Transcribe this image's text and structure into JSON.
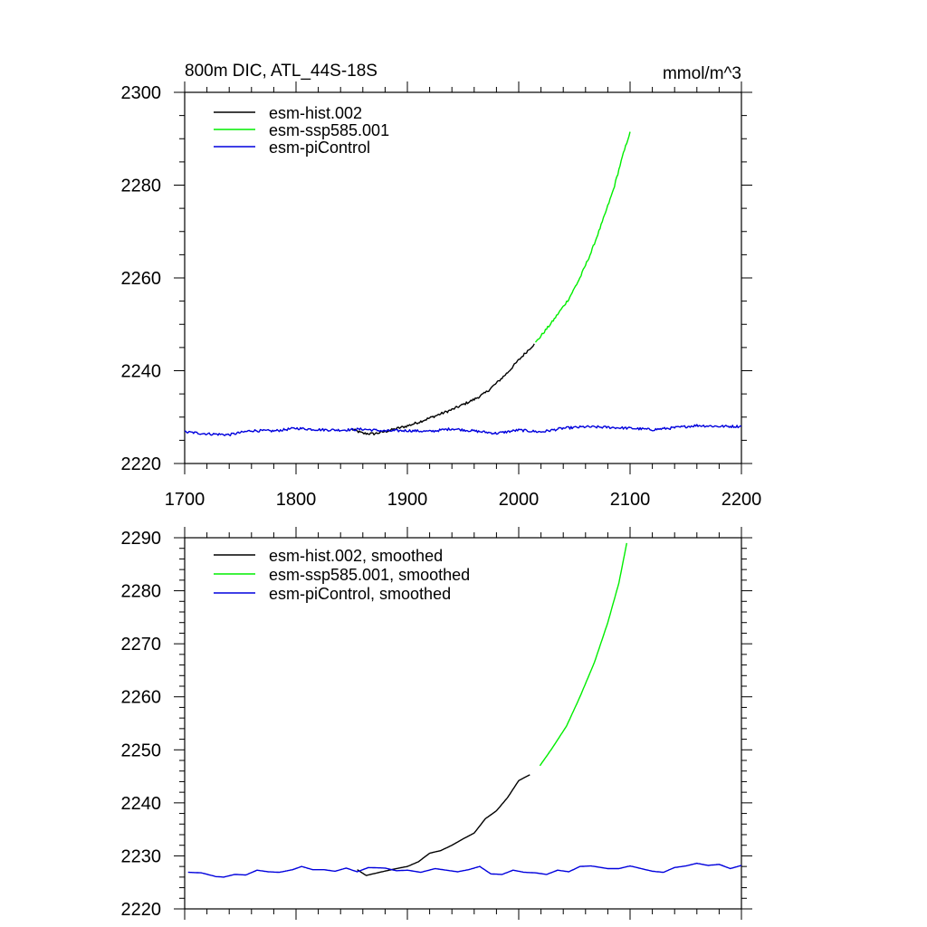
{
  "chart_data": [
    {
      "type": "line",
      "title": "800m DIC, ATL_44S-18S",
      "units": "mmol/m^3",
      "xlim": [
        1700,
        2200
      ],
      "ylim": [
        2220,
        2300
      ],
      "x_ticks": [
        "1700",
        "1800",
        "1900",
        "2000",
        "2100",
        "2200"
      ],
      "y_ticks": [
        "2220",
        "2240",
        "2260",
        "2280",
        "2300"
      ],
      "legend": [
        "esm-hist.002",
        "esm-ssp585.001",
        "esm-piControl"
      ],
      "series": [
        {
          "name": "esm-hist.002",
          "color": "#000000",
          "noisy": true,
          "points": [
            [
              1850,
              2227.4
            ],
            [
              1860,
              2226.5
            ],
            [
              1870,
              2226.4
            ],
            [
              1880,
              2226.9
            ],
            [
              1890,
              2227.5
            ],
            [
              1900,
              2228.1
            ],
            [
              1910,
              2228.9
            ],
            [
              1920,
              2229.8
            ],
            [
              1930,
              2230.7
            ],
            [
              1940,
              2231.6
            ],
            [
              1950,
              2232.7
            ],
            [
              1960,
              2233.8
            ],
            [
              1970,
              2235.2
            ],
            [
              1980,
              2237.3
            ],
            [
              1990,
              2239.6
            ],
            [
              2000,
              2242.3
            ],
            [
              2014,
              2245.8
            ]
          ]
        },
        {
          "name": "esm-ssp585.001",
          "color": "#00ee00",
          "noisy": true,
          "points": [
            [
              2015,
              2246.0
            ],
            [
              2030,
              2250.5
            ],
            [
              2045,
              2255.5
            ],
            [
              2055,
              2260.0
            ],
            [
              2065,
              2265.5
            ],
            [
              2075,
              2272.0
            ],
            [
              2085,
              2279.0
            ],
            [
              2093,
              2286.0
            ],
            [
              2100,
              2291.5
            ]
          ]
        },
        {
          "name": "esm-piControl",
          "color": "#0000dd",
          "noisy": true,
          "points": [
            [
              1700,
              2226.8
            ],
            [
              1720,
              2226.4
            ],
            [
              1740,
              2226.2
            ],
            [
              1760,
              2227.1
            ],
            [
              1780,
              2227.0
            ],
            [
              1800,
              2227.6
            ],
            [
              1820,
              2227.3
            ],
            [
              1840,
              2227.2
            ],
            [
              1860,
              2227.4
            ],
            [
              1880,
              2227.0
            ],
            [
              1900,
              2227.1
            ],
            [
              1920,
              2226.9
            ],
            [
              1940,
              2227.5
            ],
            [
              1960,
              2227.0
            ],
            [
              1980,
              2226.5
            ],
            [
              2000,
              2227.2
            ],
            [
              2020,
              2226.8
            ],
            [
              2040,
              2227.6
            ],
            [
              2060,
              2227.9
            ],
            [
              2080,
              2227.8
            ],
            [
              2100,
              2227.6
            ],
            [
              2120,
              2227.3
            ],
            [
              2140,
              2227.7
            ],
            [
              2160,
              2228.2
            ],
            [
              2180,
              2228.0
            ],
            [
              2200,
              2228.0
            ]
          ]
        }
      ]
    },
    {
      "type": "line",
      "title": "",
      "units": "",
      "xlim": [
        1700,
        2200
      ],
      "ylim": [
        2220,
        2290
      ],
      "x_ticks": [],
      "y_ticks": [
        "2220",
        "2230",
        "2240",
        "2250",
        "2260",
        "2270",
        "2280",
        "2290"
      ],
      "legend": [
        "esm-hist.002, smoothed",
        "esm-ssp585.001, smoothed",
        "esm-piControl, smoothed"
      ],
      "series": [
        {
          "name": "esm-hist.002, smoothed",
          "color": "#000000",
          "noisy": false,
          "points": [
            [
              1855,
              2227.4
            ],
            [
              1863,
              2226.3
            ],
            [
              1875,
              2226.9
            ],
            [
              1890,
              2227.6
            ],
            [
              1900,
              2228.0
            ],
            [
              1910,
              2228.9
            ],
            [
              1920,
              2230.5
            ],
            [
              1930,
              2231.0
            ],
            [
              1940,
              2232.0
            ],
            [
              1950,
              2233.2
            ],
            [
              1960,
              2234.3
            ],
            [
              1970,
              2237.0
            ],
            [
              1980,
              2238.5
            ],
            [
              1990,
              2241.0
            ],
            [
              2000,
              2244.2
            ],
            [
              2010,
              2245.3
            ]
          ]
        },
        {
          "name": "esm-ssp585.001, smoothed",
          "color": "#00ee00",
          "noisy": false,
          "points": [
            [
              2019,
              2247.0
            ],
            [
              2030,
              2250.3
            ],
            [
              2043,
              2254.5
            ],
            [
              2055,
              2260.0
            ],
            [
              2068,
              2266.5
            ],
            [
              2080,
              2274.0
            ],
            [
              2090,
              2281.5
            ],
            [
              2097,
              2289.0
            ]
          ]
        },
        {
          "name": "esm-piControl, smoothed",
          "color": "#0000dd",
          "noisy": false,
          "points": [
            [
              1703,
              2226.9
            ],
            [
              1715,
              2226.8
            ],
            [
              1728,
              2226.1
            ],
            [
              1735,
              2226.0
            ],
            [
              1745,
              2226.5
            ],
            [
              1755,
              2226.4
            ],
            [
              1765,
              2227.3
            ],
            [
              1775,
              2227.0
            ],
            [
              1785,
              2226.9
            ],
            [
              1797,
              2227.4
            ],
            [
              1805,
              2228.0
            ],
            [
              1815,
              2227.4
            ],
            [
              1825,
              2227.4
            ],
            [
              1835,
              2227.1
            ],
            [
              1845,
              2227.7
            ],
            [
              1855,
              2227.0
            ],
            [
              1865,
              2227.8
            ],
            [
              1880,
              2227.7
            ],
            [
              1890,
              2227.2
            ],
            [
              1900,
              2227.3
            ],
            [
              1912,
              2226.9
            ],
            [
              1925,
              2227.6
            ],
            [
              1935,
              2227.3
            ],
            [
              1945,
              2227.0
            ],
            [
              1955,
              2227.4
            ],
            [
              1965,
              2228.0
            ],
            [
              1975,
              2226.6
            ],
            [
              1985,
              2226.5
            ],
            [
              1995,
              2227.3
            ],
            [
              2005,
              2226.9
            ],
            [
              2015,
              2226.8
            ],
            [
              2025,
              2226.5
            ],
            [
              2035,
              2227.3
            ],
            [
              2045,
              2227.0
            ],
            [
              2055,
              2228.0
            ],
            [
              2065,
              2228.1
            ],
            [
              2080,
              2227.6
            ],
            [
              2090,
              2227.6
            ],
            [
              2100,
              2228.1
            ],
            [
              2110,
              2227.6
            ],
            [
              2120,
              2227.1
            ],
            [
              2130,
              2226.9
            ],
            [
              2140,
              2227.8
            ],
            [
              2150,
              2228.1
            ],
            [
              2160,
              2228.6
            ],
            [
              2170,
              2228.2
            ],
            [
              2180,
              2228.4
            ],
            [
              2190,
              2227.6
            ],
            [
              2200,
              2228.2
            ]
          ]
        }
      ]
    }
  ]
}
